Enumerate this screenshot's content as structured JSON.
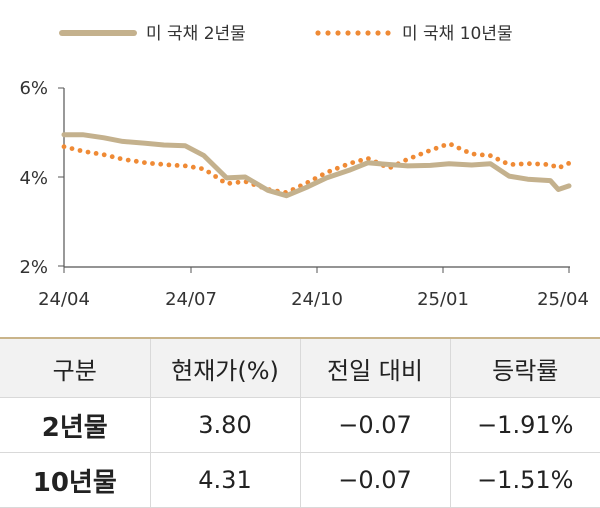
{
  "chart_data": {
    "type": "line",
    "legend_position": "top",
    "x_ticks": [
      "24/04",
      "24/07",
      "24/10",
      "25/01",
      "25/04"
    ],
    "y_ticks": [
      "6%",
      "4%",
      "2%"
    ],
    "ylim": [
      2,
      6
    ],
    "grid": false,
    "series": [
      {
        "name": "미 국채 2년물",
        "style": "solid",
        "color": "#c4b18d",
        "x": [
          "2024-04-01",
          "2024-04-15",
          "2024-05-01",
          "2024-05-15",
          "2024-06-01",
          "2024-06-15",
          "2024-07-01",
          "2024-07-15",
          "2024-08-01",
          "2024-08-15",
          "2024-09-01",
          "2024-09-15",
          "2024-10-01",
          "2024-10-15",
          "2024-11-01",
          "2024-11-15",
          "2024-12-01",
          "2024-12-15",
          "2025-01-01",
          "2025-01-15",
          "2025-02-01",
          "2025-02-15",
          "2025-03-01",
          "2025-03-15",
          "2025-04-01",
          "2025-04-07",
          "2025-04-15"
        ],
        "values": [
          4.95,
          4.95,
          4.88,
          4.8,
          4.76,
          4.72,
          4.7,
          4.48,
          3.98,
          4.0,
          3.7,
          3.58,
          3.78,
          3.98,
          4.15,
          4.32,
          4.28,
          4.25,
          4.26,
          4.3,
          4.27,
          4.3,
          4.02,
          3.95,
          3.92,
          3.72,
          3.8
        ]
      },
      {
        "name": "미 국채 10년물",
        "style": "dotted",
        "color": "#ef8a35",
        "x": [
          "2024-04-01",
          "2024-04-15",
          "2024-05-01",
          "2024-05-15",
          "2024-06-01",
          "2024-06-15",
          "2024-07-01",
          "2024-07-15",
          "2024-08-01",
          "2024-08-15",
          "2024-09-01",
          "2024-09-15",
          "2024-10-01",
          "2024-10-15",
          "2024-11-01",
          "2024-11-15",
          "2024-12-01",
          "2024-12-15",
          "2025-01-01",
          "2025-01-15",
          "2025-02-01",
          "2025-02-15",
          "2025-03-01",
          "2025-03-15",
          "2025-04-01",
          "2025-04-07",
          "2025-04-15"
        ],
        "values": [
          4.68,
          4.58,
          4.5,
          4.4,
          4.32,
          4.28,
          4.25,
          4.18,
          3.85,
          3.9,
          3.72,
          3.65,
          3.88,
          4.1,
          4.3,
          4.42,
          4.2,
          4.4,
          4.6,
          4.75,
          4.52,
          4.48,
          4.28,
          4.3,
          4.28,
          4.2,
          4.31
        ]
      }
    ]
  },
  "table": {
    "headers": [
      "구분",
      "현재가(%)",
      "전일 대비",
      "등락률"
    ],
    "rows": [
      [
        "2년물",
        "3.80",
        "−0.07",
        "−1.91%"
      ],
      [
        "10년물",
        "4.31",
        "−0.07",
        "−1.51%"
      ]
    ]
  }
}
